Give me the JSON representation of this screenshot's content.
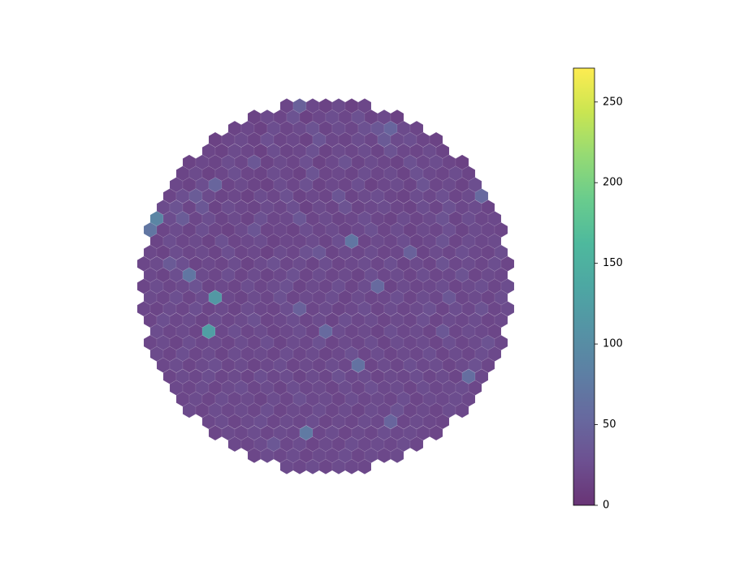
{
  "chart_data": {
    "type": "hexbin",
    "cmap": "viridis",
    "alpha": 0.8,
    "clim": [
      0,
      271
    ],
    "cticks": [
      0,
      50,
      100,
      150,
      200,
      250
    ],
    "rows": [
      [
        18,
        45,
        20,
        15,
        22,
        14,
        19
      ],
      [
        15,
        22,
        18,
        30,
        14,
        20,
        25,
        19,
        28,
        16,
        21,
        14
      ],
      [
        16,
        20,
        14,
        25,
        18,
        22,
        30,
        17,
        24,
        19,
        28,
        35,
        50,
        22,
        18
      ],
      [
        14,
        19,
        22,
        16,
        27,
        18,
        21,
        15,
        33,
        20,
        17,
        24,
        19,
        38,
        22,
        26,
        18,
        15
      ],
      [
        18,
        15,
        22,
        19,
        14,
        25,
        17,
        20,
        28,
        16,
        22,
        19,
        24,
        17,
        30,
        20,
        18,
        23,
        16
      ],
      [
        15,
        20,
        17,
        24,
        19,
        35,
        16,
        22,
        18,
        27,
        15,
        21,
        30,
        17,
        23,
        19,
        16,
        28,
        20,
        24,
        18,
        14
      ],
      [
        17,
        22,
        15,
        19,
        26,
        18,
        16,
        24,
        20,
        15,
        32,
        18,
        21,
        17,
        25,
        19,
        23,
        16,
        28,
        21,
        18,
        24,
        17
      ],
      [
        20,
        16,
        25,
        50,
        18,
        22,
        17,
        15,
        24,
        19,
        28,
        16,
        21,
        18,
        26,
        15,
        20,
        23,
        17,
        32,
        19,
        22,
        16,
        25
      ],
      [
        18,
        26,
        40,
        22,
        17,
        20,
        15,
        24,
        19,
        28,
        16,
        21,
        18,
        33,
        17,
        22,
        25,
        19,
        16,
        24,
        20,
        27,
        18,
        22,
        55
      ],
      [
        22,
        30,
        18,
        35,
        16,
        24,
        20,
        17,
        23,
        19,
        26,
        15,
        22,
        18,
        30,
        17,
        21,
        24,
        19,
        16,
        25,
        18,
        28,
        20,
        23,
        17
      ],
      [
        90,
        24,
        40,
        19,
        25,
        17,
        22,
        16,
        28,
        19,
        21,
        35,
        18,
        23,
        17,
        20,
        26,
        19,
        16,
        24,
        18,
        22,
        30,
        17,
        25,
        19,
        21
      ],
      [
        70,
        18,
        23,
        17,
        26,
        19,
        15,
        22,
        33,
        18,
        20,
        16,
        25,
        19,
        23,
        17,
        21,
        28,
        18,
        24,
        16,
        22,
        19,
        27,
        17,
        23,
        20,
        18
      ],
      [
        17,
        25,
        19,
        22,
        16,
        28,
        18,
        21,
        24,
        16,
        20,
        19,
        23,
        17,
        26,
        70,
        18,
        22,
        19,
        25,
        17,
        21,
        30,
        18,
        24,
        20,
        22
      ],
      [
        20,
        16,
        24,
        19,
        22,
        17,
        26,
        18,
        21,
        15,
        23,
        19,
        28,
        35,
        17,
        22,
        19,
        24,
        18,
        20,
        45,
        17,
        23,
        19,
        26,
        21,
        18,
        25
      ],
      [
        19,
        22,
        38,
        26,
        17,
        21,
        18,
        24,
        16,
        22,
        28,
        19,
        23,
        17,
        25,
        18,
        21,
        24,
        19,
        26,
        17,
        22,
        18,
        30,
        20,
        23,
        19,
        25,
        18
      ],
      [
        21,
        17,
        25,
        70,
        22,
        19,
        26,
        18,
        23,
        17,
        21,
        28,
        18,
        24,
        19,
        22,
        17,
        26,
        20,
        23,
        18,
        25,
        19,
        21,
        30,
        18,
        22,
        20
      ],
      [
        18,
        24,
        19,
        22,
        30,
        17,
        21,
        18,
        25,
        19,
        23,
        28,
        17,
        22,
        19,
        26,
        18,
        24,
        55,
        17,
        23,
        19,
        21,
        25,
        18,
        22,
        26,
        19,
        24
      ],
      [
        22,
        19,
        26,
        18,
        24,
        115,
        21,
        17,
        23,
        19,
        28,
        18,
        22,
        20,
        25,
        17,
        23,
        19,
        21,
        26,
        18,
        24,
        20,
        35,
        19,
        22,
        18,
        25
      ],
      [
        20,
        17,
        23,
        19,
        26,
        18,
        22,
        17,
        24,
        20,
        18,
        25,
        45,
        19,
        23,
        17,
        21,
        26,
        18,
        24,
        19,
        22,
        28,
        18,
        25,
        20,
        30,
        19,
        23
      ],
      [
        18,
        26,
        20,
        23,
        17,
        24,
        19,
        22,
        28,
        18,
        21,
        25,
        19,
        23,
        17,
        26,
        20,
        24,
        18,
        22,
        19,
        27,
        18,
        23,
        20,
        24,
        18,
        21
      ],
      [
        24,
        19,
        22,
        18,
        125,
        20,
        26,
        19,
        23,
        17,
        21,
        25,
        18,
        55,
        24,
        19,
        22,
        17,
        26,
        20,
        23,
        18,
        35,
        19,
        24,
        21,
        18
      ],
      [
        19,
        23,
        17,
        25,
        20,
        22,
        18,
        24,
        19,
        26,
        17,
        23,
        20,
        28,
        18,
        22,
        19,
        25,
        17,
        24,
        20,
        23,
        18,
        26,
        19,
        22,
        30,
        20
      ],
      [
        22,
        18,
        26,
        19,
        23,
        17,
        24,
        20,
        22,
        18,
        25,
        19,
        23,
        17,
        21,
        28,
        19,
        24,
        18,
        22,
        20,
        26,
        18,
        23,
        19,
        25,
        21
      ],
      [
        20,
        24,
        18,
        22,
        26,
        19,
        23,
        17,
        21,
        25,
        18,
        22,
        19,
        24,
        20,
        65,
        18,
        23,
        19,
        26,
        21,
        24,
        18,
        22,
        28,
        19
      ],
      [
        18,
        23,
        20,
        25,
        19,
        22,
        18,
        26,
        20,
        24,
        17,
        23,
        19,
        28,
        21,
        24,
        18,
        22,
        20,
        25,
        19,
        23,
        18,
        60,
        21
      ],
      [
        21,
        19,
        24,
        18,
        22,
        26,
        19,
        23,
        17,
        25,
        20,
        22,
        18,
        24,
        19,
        27,
        21,
        23,
        18,
        25,
        20,
        22,
        24,
        19
      ],
      [
        19,
        23,
        18,
        25,
        20,
        22,
        17,
        24,
        19,
        28,
        21,
        23,
        18,
        25,
        20,
        22,
        19,
        26,
        18,
        23,
        21,
        24,
        20
      ],
      [
        22,
        18,
        24,
        20,
        23,
        19,
        26,
        18,
        22,
        20,
        25,
        19,
        23,
        17,
        24,
        21,
        30,
        19,
        22,
        18,
        24,
        20
      ],
      [
        20,
        24,
        18,
        22,
        26,
        19,
        23,
        20,
        25,
        18,
        22,
        19,
        24,
        21,
        50,
        19,
        23,
        20,
        18
      ],
      [
        18,
        22,
        20,
        24,
        19,
        23,
        21,
        75,
        20,
        24,
        18,
        22,
        19,
        25,
        21,
        23,
        20,
        18
      ],
      [
        21,
        19,
        23,
        35,
        20,
        24,
        18,
        22,
        19,
        25,
        21,
        23,
        20,
        24,
        19
      ],
      [
        19,
        23,
        20,
        24,
        18,
        22,
        21,
        25,
        19,
        23,
        20,
        22
      ],
      [
        22,
        20,
        24,
        19,
        23,
        21,
        20
      ]
    ]
  }
}
